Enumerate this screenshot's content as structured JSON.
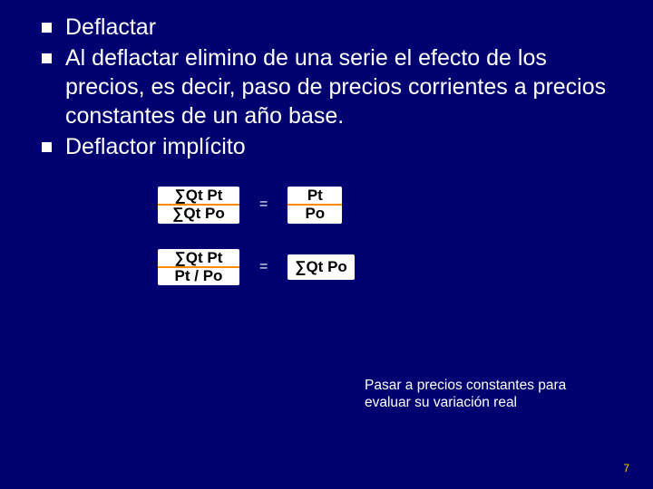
{
  "colors": {
    "background": "#000070",
    "text": "#ffffff",
    "bullet": "#ffffff",
    "fraction_bg": "#ffffff",
    "fraction_text": "#000000",
    "fraction_bar": "#ff8c00",
    "page_number": "#ffcc00"
  },
  "typography": {
    "body_font": "Verdana",
    "body_size_pt": 19,
    "formula_font": "Arial",
    "formula_weight": "900",
    "caption_size_pt": 12
  },
  "bullets": {
    "item1": "Deflactar",
    "item2": "Al deflactar elimino de una serie el efecto de los precios, es decir, paso de precios corrientes a precios constantes de un año base.",
    "item3": "Deflactor implícito"
  },
  "formulas": {
    "row1": {
      "left_num": "∑Qt Pt",
      "left_den": "∑Qt Po",
      "eq": "=",
      "right_num": "Pt",
      "right_den": "Po"
    },
    "row2": {
      "left_num": "∑Qt Pt",
      "left_den": "Pt / Po",
      "eq": "=",
      "right": "∑Qt Po"
    }
  },
  "caption": "Pasar a precios constantes para evaluar su variación real",
  "page_number": "7"
}
